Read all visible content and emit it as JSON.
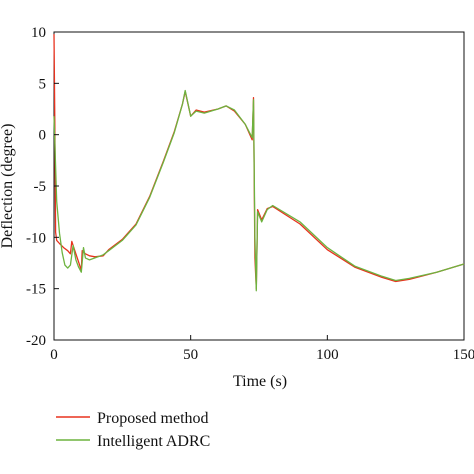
{
  "chart_data": {
    "type": "line",
    "title": "",
    "xlabel": "Time (s)",
    "ylabel": "Deflection (degree)",
    "xlim": [
      0,
      150
    ],
    "ylim": [
      -20,
      10
    ],
    "xticks": [
      0,
      50,
      100,
      150
    ],
    "yticks": [
      -20,
      -15,
      -10,
      -5,
      0,
      5,
      10
    ],
    "grid": false,
    "legend_position": "bottom-left, below plot",
    "series": [
      {
        "name": "Proposed method",
        "color": "#e8321e",
        "points": [
          [
            0,
            9.8
          ],
          [
            0.3,
            1.5
          ],
          [
            0.6,
            -9.5
          ],
          [
            1,
            -10.3
          ],
          [
            2,
            -10.6
          ],
          [
            3.5,
            -11.0
          ],
          [
            5,
            -11.3
          ],
          [
            6,
            -11.6
          ],
          [
            6.5,
            -10.4
          ],
          [
            7.5,
            -11.2
          ],
          [
            9,
            -12.4
          ],
          [
            10,
            -13.2
          ],
          [
            10.3,
            -11.3
          ],
          [
            11.5,
            -11.6
          ],
          [
            13,
            -11.8
          ],
          [
            15,
            -11.9
          ],
          [
            18,
            -11.8
          ],
          [
            20,
            -11.2
          ],
          [
            25,
            -10.2
          ],
          [
            30,
            -8.7
          ],
          [
            35,
            -6.0
          ],
          [
            40,
            -2.6
          ],
          [
            44,
            0.3
          ],
          [
            47,
            3.0
          ],
          [
            48,
            4.2
          ],
          [
            50,
            1.8
          ],
          [
            52,
            2.4
          ],
          [
            55,
            2.2
          ],
          [
            60,
            2.5
          ],
          [
            63,
            2.8
          ],
          [
            66,
            2.3
          ],
          [
            70,
            1.0
          ],
          [
            72.5,
            -0.5
          ],
          [
            73,
            3.6
          ],
          [
            73.5,
            -12.0
          ],
          [
            74,
            -15.0
          ],
          [
            74.5,
            -7.3
          ],
          [
            76,
            -8.3
          ],
          [
            78,
            -7.2
          ],
          [
            80,
            -7.0
          ],
          [
            90,
            -8.7
          ],
          [
            100,
            -11.2
          ],
          [
            110,
            -12.9
          ],
          [
            120,
            -13.9
          ],
          [
            125,
            -14.3
          ],
          [
            130,
            -14.1
          ],
          [
            140,
            -13.4
          ],
          [
            150,
            -12.6
          ]
        ]
      },
      {
        "name": "Intelligent ADRC",
        "color": "#6db33f",
        "points": [
          [
            0,
            1.8
          ],
          [
            1,
            -6.5
          ],
          [
            2,
            -9.6
          ],
          [
            3,
            -11.5
          ],
          [
            4,
            -12.7
          ],
          [
            5,
            -13.0
          ],
          [
            6,
            -12.7
          ],
          [
            7,
            -10.8
          ],
          [
            8,
            -12.2
          ],
          [
            9,
            -12.9
          ],
          [
            10,
            -13.4
          ],
          [
            10.8,
            -11.0
          ],
          [
            11.5,
            -12.0
          ],
          [
            13,
            -12.2
          ],
          [
            15,
            -12.0
          ],
          [
            18,
            -11.7
          ],
          [
            20,
            -11.3
          ],
          [
            25,
            -10.3
          ],
          [
            30,
            -8.8
          ],
          [
            35,
            -6.1
          ],
          [
            40,
            -2.7
          ],
          [
            44,
            0.2
          ],
          [
            47,
            3.0
          ],
          [
            48,
            4.3
          ],
          [
            50,
            1.8
          ],
          [
            52,
            2.3
          ],
          [
            55,
            2.1
          ],
          [
            60,
            2.5
          ],
          [
            63,
            2.8
          ],
          [
            66,
            2.4
          ],
          [
            70,
            1.0
          ],
          [
            72.5,
            -0.3
          ],
          [
            73,
            3.4
          ],
          [
            73.5,
            -10.0
          ],
          [
            74,
            -15.2
          ],
          [
            74.5,
            -7.5
          ],
          [
            76,
            -8.5
          ],
          [
            78,
            -7.3
          ],
          [
            80,
            -6.9
          ],
          [
            90,
            -8.5
          ],
          [
            100,
            -11.0
          ],
          [
            110,
            -12.8
          ],
          [
            120,
            -13.8
          ],
          [
            125,
            -14.2
          ],
          [
            130,
            -14.0
          ],
          [
            140,
            -13.4
          ],
          [
            150,
            -12.6
          ]
        ]
      }
    ]
  }
}
